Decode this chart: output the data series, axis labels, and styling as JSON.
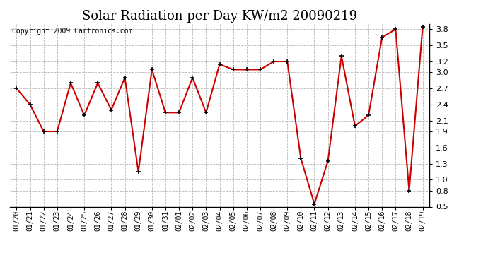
{
  "title": "Solar Radiation per Day KW/m2 20090219",
  "copyright": "Copyright 2009 Cartronics.com",
  "dates": [
    "01/20",
    "01/21",
    "01/22",
    "01/23",
    "01/24",
    "01/25",
    "01/26",
    "01/27",
    "01/28",
    "01/29",
    "01/30",
    "01/31",
    "02/01",
    "02/02",
    "02/03",
    "02/04",
    "02/05",
    "02/06",
    "02/07",
    "02/08",
    "02/09",
    "02/10",
    "02/11",
    "02/12",
    "02/13",
    "02/14",
    "02/15",
    "02/16",
    "02/17",
    "02/18",
    "02/19"
  ],
  "values": [
    2.7,
    2.4,
    1.9,
    1.9,
    2.8,
    2.2,
    2.8,
    2.3,
    2.9,
    1.15,
    3.05,
    2.25,
    2.25,
    2.9,
    2.25,
    3.15,
    3.05,
    3.05,
    3.05,
    3.2,
    3.2,
    1.4,
    0.55,
    1.35,
    3.3,
    2.0,
    2.2,
    3.65,
    3.8,
    0.8,
    3.85
  ],
  "line_color": "#cc0000",
  "marker_color": "#000000",
  "bg_color": "#ffffff",
  "grid_color": "#b0b0b0",
  "ylim": [
    0.5,
    3.9
  ],
  "yticks": [
    0.5,
    0.8,
    1.0,
    1.3,
    1.6,
    1.9,
    2.1,
    2.4,
    2.7,
    3.0,
    3.2,
    3.5,
    3.8
  ],
  "title_fontsize": 13,
  "copyright_fontsize": 7
}
